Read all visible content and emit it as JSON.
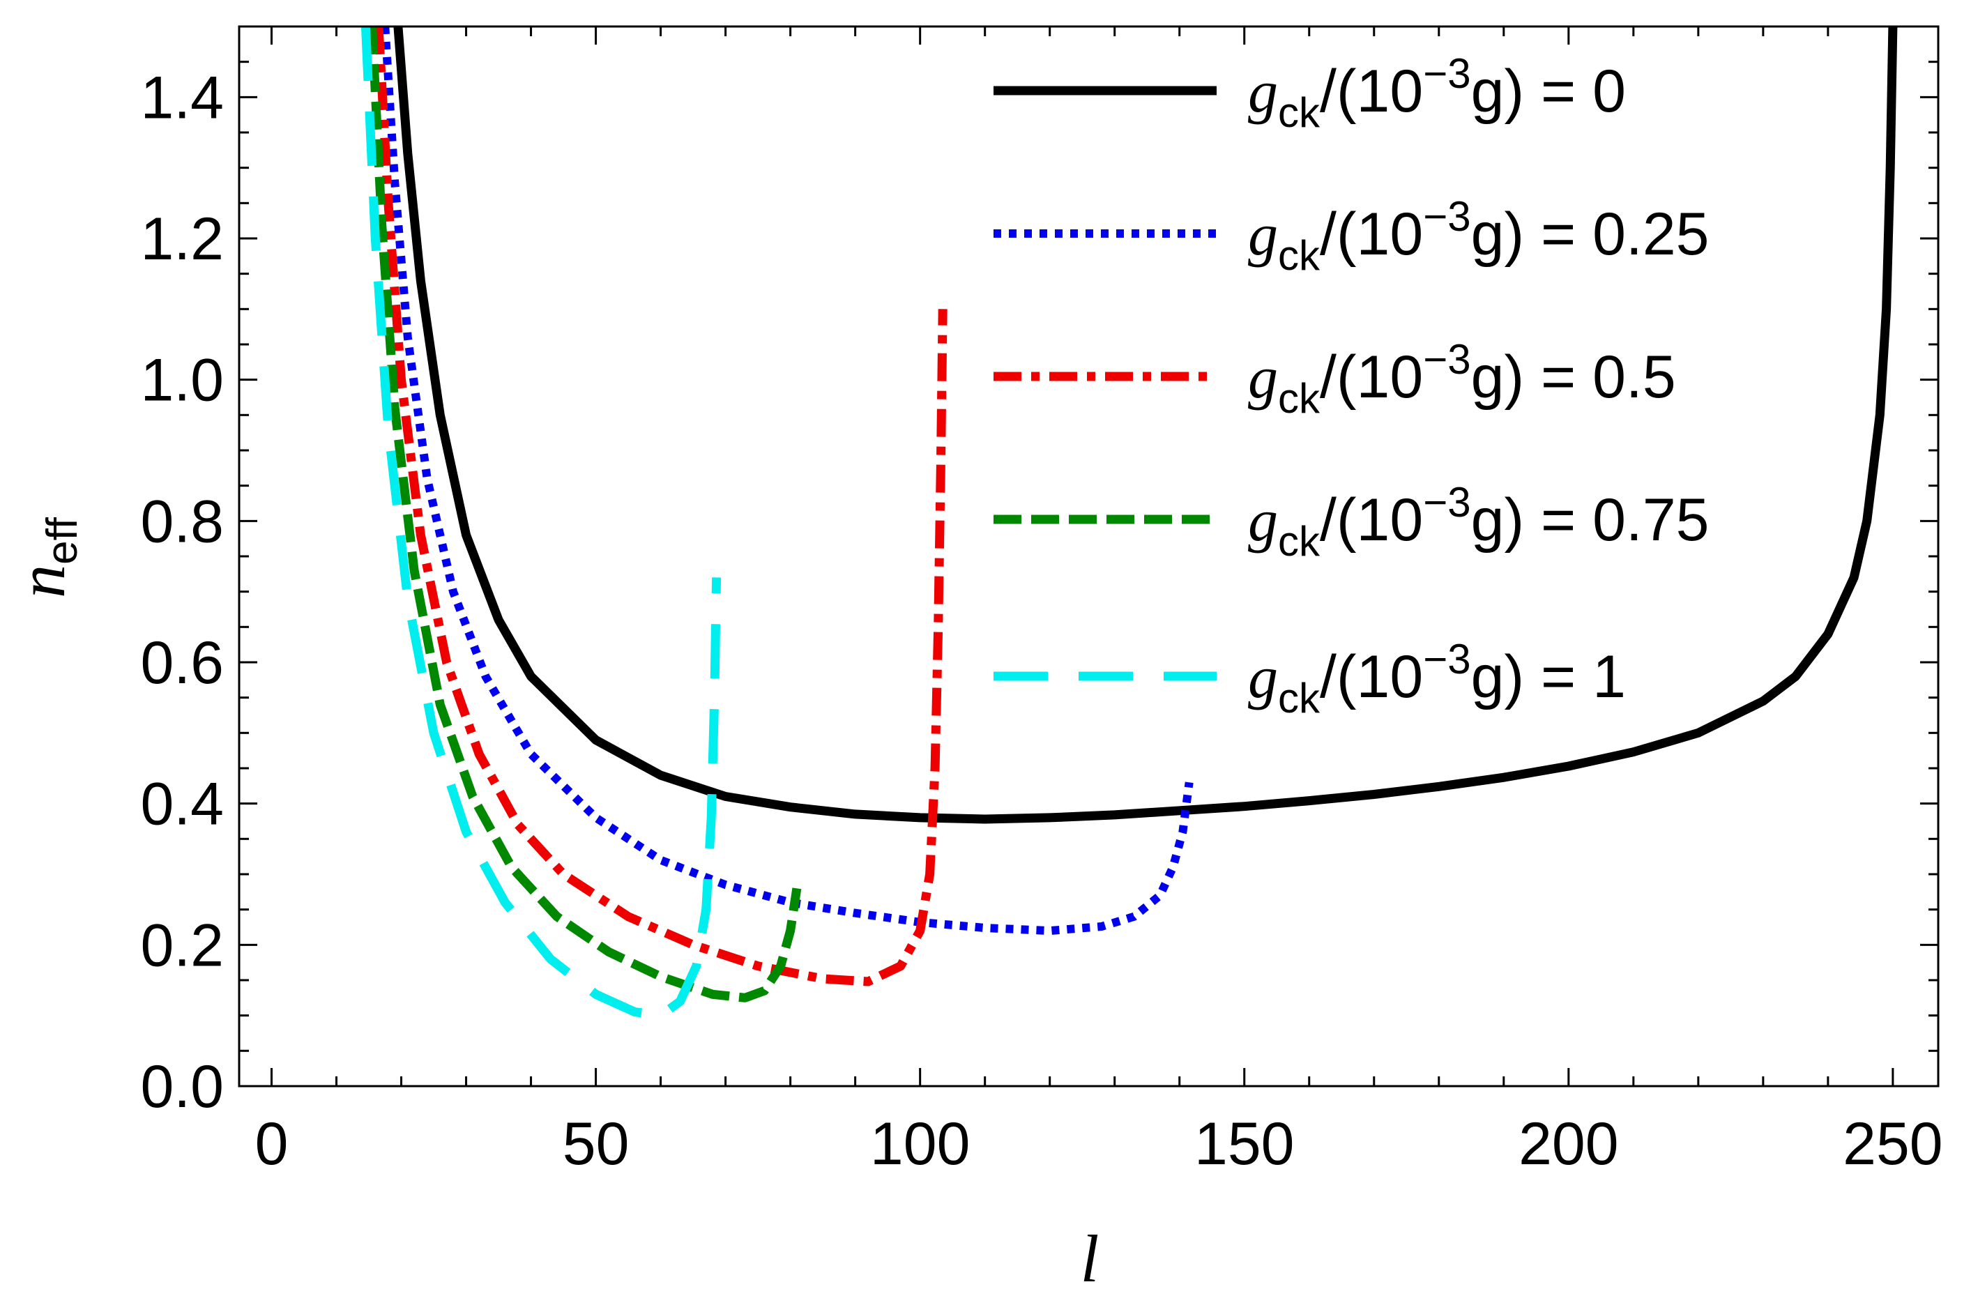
{
  "chart_data": {
    "type": "line",
    "xlabel": "l",
    "ylabel_main": "n",
    "ylabel_sub": "eff",
    "xlim": [
      -5,
      257
    ],
    "ylim": [
      0.0,
      1.5
    ],
    "x_ticks": [
      0,
      50,
      100,
      150,
      200,
      250
    ],
    "x_tick_labels": [
      "0",
      "50",
      "100",
      "150",
      "200",
      "250"
    ],
    "y_ticks": [
      0.0,
      0.2,
      0.4,
      0.6,
      0.8,
      1.0,
      1.2,
      1.4
    ],
    "y_tick_labels": [
      "0.0",
      "0.2",
      "0.4",
      "0.6",
      "0.8",
      "1.0",
      "1.2",
      "1.4"
    ],
    "legend_position": "top-right",
    "series": [
      {
        "name": "gck/(10^-3 g) = 0",
        "legend": {
          "g": "g",
          "sub": "ck",
          "mid": "/(10",
          "exp": "−3",
          "tail": "g) = ",
          "value": "0"
        },
        "color": "#000000",
        "dash": "solid",
        "x": [
          19.5,
          21,
          23,
          26,
          30,
          35,
          40,
          50,
          60,
          70,
          80,
          90,
          100,
          110,
          120,
          130,
          140,
          150,
          160,
          170,
          180,
          190,
          200,
          210,
          220,
          230,
          235,
          240,
          244,
          246,
          248,
          249,
          249.6,
          250
        ],
        "y": [
          1.5,
          1.32,
          1.14,
          0.95,
          0.78,
          0.66,
          0.58,
          0.49,
          0.44,
          0.41,
          0.395,
          0.385,
          0.38,
          0.378,
          0.38,
          0.384,
          0.39,
          0.396,
          0.404,
          0.413,
          0.424,
          0.437,
          0.453,
          0.473,
          0.5,
          0.545,
          0.58,
          0.64,
          0.72,
          0.8,
          0.95,
          1.1,
          1.3,
          1.5
        ]
      },
      {
        "name": "gck/(10^-3 g) = 0.25",
        "legend": {
          "g": "g",
          "sub": "ck",
          "mid": "/(10",
          "exp": "−3",
          "tail": "g) = ",
          "value": "0.25"
        },
        "color": "#0000ee",
        "dash": "dotted",
        "x": [
          17.5,
          19,
          21,
          24,
          28,
          33,
          40,
          50,
          60,
          70,
          80,
          90,
          100,
          110,
          120,
          128,
          133,
          137,
          139,
          140.5,
          141.5
        ],
        "y": [
          1.5,
          1.28,
          1.06,
          0.86,
          0.7,
          0.58,
          0.47,
          0.38,
          0.32,
          0.285,
          0.26,
          0.245,
          0.232,
          0.224,
          0.22,
          0.226,
          0.24,
          0.27,
          0.31,
          0.36,
          0.43
        ]
      },
      {
        "name": "gck/(10^-3 g) = 0.5",
        "legend": {
          "g": "g",
          "sub": "ck",
          "mid": "/(10",
          "exp": "−3",
          "tail": "g) = ",
          "value": "0.5"
        },
        "color": "#ee0000",
        "dash": "dashdot",
        "x": [
          16.5,
          18,
          20,
          23,
          27,
          32,
          38,
          45,
          55,
          65,
          75,
          85,
          92,
          97,
          100,
          101.5,
          102.3,
          102.8,
          103.2,
          103.5
        ],
        "y": [
          1.5,
          1.25,
          1.0,
          0.78,
          0.6,
          0.47,
          0.37,
          0.3,
          0.24,
          0.2,
          0.17,
          0.152,
          0.148,
          0.17,
          0.22,
          0.3,
          0.45,
          0.65,
          0.88,
          1.1
        ]
      },
      {
        "name": "gck/(10^-3 g) = 0.75",
        "legend": {
          "g": "g",
          "sub": "ck",
          "mid": "/(10",
          "exp": "−3",
          "tail": "g) = ",
          "value": "0.75"
        },
        "color": "#008800",
        "dash": "dashed",
        "x": [
          15.5,
          17,
          19,
          22,
          26,
          31,
          37,
          44,
          52,
          60,
          68,
          73,
          76,
          78.5,
          80,
          81
        ],
        "y": [
          1.5,
          1.22,
          0.96,
          0.73,
          0.54,
          0.41,
          0.31,
          0.24,
          0.19,
          0.155,
          0.13,
          0.125,
          0.135,
          0.17,
          0.22,
          0.28
        ]
      },
      {
        "name": "gck/(10^-3 g) = 1",
        "legend": {
          "g": "g",
          "sub": "ck",
          "mid": "/(10",
          "exp": "−3",
          "tail": "g) = ",
          "value": "1"
        },
        "color": "#00eeee",
        "dash": "longdash",
        "x": [
          14.5,
          16,
          18,
          21,
          25,
          30,
          36,
          43,
          50,
          56,
          60,
          63,
          65.5,
          67,
          67.8,
          68.3,
          68.6
        ],
        "y": [
          1.5,
          1.2,
          0.93,
          0.69,
          0.5,
          0.36,
          0.26,
          0.18,
          0.13,
          0.105,
          0.1,
          0.12,
          0.17,
          0.25,
          0.38,
          0.55,
          0.72
        ]
      }
    ]
  }
}
